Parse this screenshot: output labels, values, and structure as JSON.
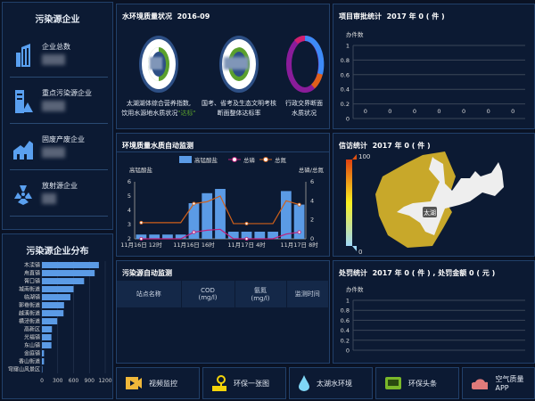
{
  "enterprise": {
    "title": "污染源企业",
    "items": [
      {
        "label": "企业总数",
        "icon": "building-icon"
      },
      {
        "label": "重点污染源企业",
        "icon": "warning-building-icon"
      },
      {
        "label": "固废产废企业",
        "icon": "factory-icon"
      },
      {
        "label": "放射源企业",
        "icon": "radiation-icon"
      }
    ]
  },
  "distribution": {
    "title": "污染源企业分布"
  },
  "water_quality": {
    "title": "水环境质量状况",
    "date": "2016-09",
    "gauges": [
      {
        "caption1": "太湖湖体综合营养指数,",
        "caption2": "饮用水源地水质状况",
        "status": "\"达标\""
      },
      {
        "caption1": "国考、省考及生态文明考核",
        "caption2": "断面整体达标率"
      },
      {
        "caption1": "行政交界断面",
        "caption2": "水质状况"
      }
    ],
    "colors": {
      "green": "#5aa02c",
      "purple": "#8a1c9a",
      "blue": "#3d8af7",
      "orange": "#e0601a",
      "pink": "#d02070"
    }
  },
  "monitor": {
    "title": "环境质量水质自动监测"
  },
  "project": {
    "title": "项目审批统计",
    "summary": "2017 年 0 ( 件 )",
    "ylabel": "办件数"
  },
  "petition": {
    "title": "信访统计",
    "summary": "2017 年 0 ( 件 )",
    "legend_max": "100",
    "legend_min": "0",
    "map_label": "太湖"
  },
  "pollution_monitor": {
    "title": "污染源自动监测",
    "headers": [
      {
        "l1": "站点名称",
        "l2": ""
      },
      {
        "l1": "COD",
        "l2": "(mg/l)"
      },
      {
        "l1": "氨氮",
        "l2": "(mg/l)"
      },
      {
        "l1": "监测时间",
        "l2": ""
      }
    ]
  },
  "penalty": {
    "title": "处罚统计",
    "summary": "2017 年 0 ( 件 ) , 处罚金额 0 ( 元 )",
    "ylabel": "办件数"
  },
  "nav": [
    {
      "label": "视频监控",
      "icon": "video-icon",
      "color": "#f0b83a"
    },
    {
      "label": "环保一张图",
      "icon": "map-pin-icon",
      "color": "#f4d40a"
    },
    {
      "label": "太湖水环境",
      "icon": "water-drop-icon",
      "color": "#7fd6f5"
    },
    {
      "label": "环保头条",
      "icon": "news-icon",
      "color": "#7ab82a"
    },
    {
      "label": "空气质量APP",
      "icon": "cloud-icon",
      "color": "#e07a7a"
    }
  ],
  "chart_data": [
    {
      "type": "bar",
      "orientation": "horizontal",
      "title": "污染源企业分布",
      "categories": [
        "木渎镇",
        "甪直镇",
        "胥口镇",
        "城南街道",
        "临湖镇",
        "郭巷街道",
        "越溪街道",
        "横泾街道",
        "高新区",
        "光福镇",
        "东山镇",
        "金庭镇",
        "香山街道",
        "穹窿山风景区"
      ],
      "values": [
        1080,
        1000,
        800,
        600,
        540,
        420,
        410,
        290,
        190,
        180,
        180,
        40,
        40,
        5
      ],
      "xlim": [
        0,
        1200
      ],
      "xticks": [
        "0",
        "300",
        "600",
        "900",
        "1200"
      ],
      "grid": true,
      "color": "#5b9be6"
    },
    {
      "type": "bar+line",
      "title": "环境质量水质自动监测",
      "legend": [
        "高锰酸盐",
        "总磷",
        "总氮"
      ],
      "ylabel_left": "高锰酸盐",
      "ylabel_right": "总磷/总氮",
      "ylim_left": [
        2,
        6
      ],
      "ylim_right": [
        0,
        6
      ],
      "yticks_left": [
        "2",
        "3",
        "4",
        "5",
        "6"
      ],
      "yticks_right": [
        "0",
        "2",
        "4",
        "6"
      ],
      "xtick_labels": [
        "11月16日 12时",
        "11月16日 16时",
        "11月17日 4时",
        "11月17日 8时"
      ],
      "series": [
        {
          "name": "高锰酸盐",
          "type": "bar",
          "axis": "left",
          "values": [
            2.3,
            2.3,
            2.3,
            2.3,
            4.5,
            5.2,
            5.5,
            2.5,
            2.5,
            2.5,
            2.5,
            5.35,
            4.4
          ],
          "color": "#5b9be6"
        },
        {
          "name": "总磷",
          "type": "line",
          "axis": "right",
          "values": [
            0,
            0,
            0,
            0,
            0.7,
            0.9,
            1.0,
            0,
            0,
            0,
            0,
            0.5,
            0.7
          ],
          "color": "#c0207a"
        },
        {
          "name": "总氮",
          "type": "line",
          "axis": "right",
          "values": [
            1.7,
            1.7,
            1.7,
            1.7,
            3.7,
            3.9,
            4.5,
            1.6,
            1.6,
            1.6,
            1.6,
            4.0,
            3.6
          ],
          "color": "#d0601a"
        }
      ]
    },
    {
      "type": "bar",
      "title": "项目审批统计",
      "ylabel": "办件数",
      "ylim": [
        0,
        1
      ],
      "yticks": [
        "0",
        "0.2",
        "0.4",
        "0.6",
        "0.8",
        "1"
      ],
      "values": [
        0,
        0,
        0,
        0,
        0,
        0,
        0
      ],
      "data_labels": [
        "0",
        "0",
        "0",
        "0",
        "0",
        "0",
        "0"
      ]
    },
    {
      "type": "bar",
      "title": "处罚统计",
      "ylabel": "办件数",
      "ylim": [
        0,
        1
      ],
      "yticks": [
        "0",
        "0.2",
        "0.4",
        "0.6",
        "0.8",
        "1"
      ],
      "values": []
    }
  ]
}
